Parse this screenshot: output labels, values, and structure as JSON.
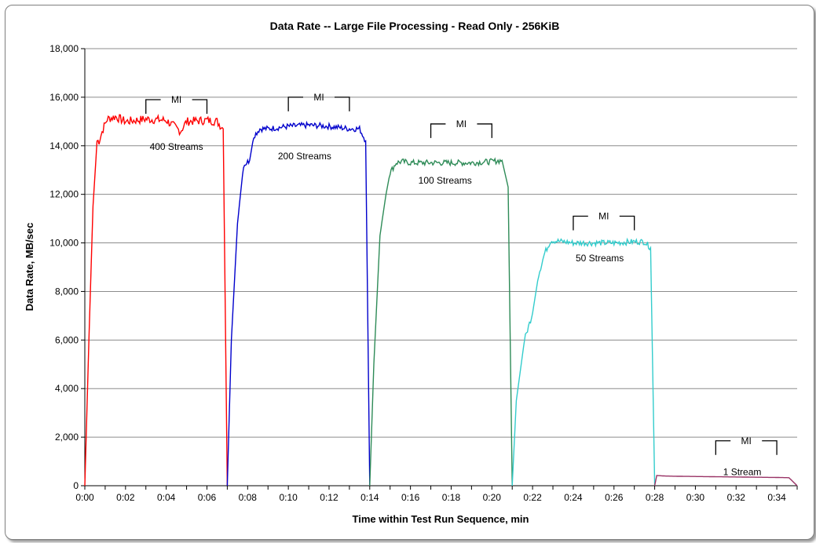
{
  "chart_data": {
    "type": "line",
    "title": "Data Rate -- Large File Processing - Read Only - 256KiB",
    "xlabel": "Time within Test Run Sequence, min",
    "ylabel": "Data Rate, MB/sec",
    "xlim": [
      0,
      35
    ],
    "ylim": [
      0,
      18000
    ],
    "x_ticks": [
      "0:00",
      "0:02",
      "0:04",
      "0:06",
      "0:08",
      "0:10",
      "0:12",
      "0:14",
      "0:16",
      "0:18",
      "0:20",
      "0:22",
      "0:24",
      "0:26",
      "0:28",
      "0:30",
      "0:32",
      "0:34"
    ],
    "x_tick_values": [
      0,
      2,
      4,
      6,
      8,
      10,
      12,
      14,
      16,
      18,
      20,
      22,
      24,
      26,
      28,
      30,
      32,
      34
    ],
    "y_ticks": [
      "0",
      "2,000",
      "4,000",
      "6,000",
      "8,000",
      "10,000",
      "12,000",
      "14,000",
      "16,000",
      "18,000"
    ],
    "y_tick_values": [
      0,
      2000,
      4000,
      6000,
      8000,
      10000,
      12000,
      14000,
      16000,
      18000
    ],
    "grid": "horizontal",
    "legend": "none",
    "series": [
      {
        "label": "400 Streams",
        "color": "#ff0000",
        "x": [
          0.0,
          0.2,
          0.4,
          0.6,
          0.7,
          0.9,
          1.1,
          1.5,
          2.0,
          3.0,
          4.0,
          4.7,
          5.0,
          6.0,
          6.5,
          6.8,
          7.0
        ],
        "y": [
          0,
          6000,
          11500,
          14200,
          14200,
          14700,
          15100,
          15200,
          15000,
          15100,
          15050,
          14600,
          15000,
          15050,
          15000,
          14700,
          0
        ],
        "plateau": [
          6.0,
          6.5
        ],
        "mi": {
          "label": "MI",
          "start": 3.0,
          "end": 6.0,
          "y": 15900
        }
      },
      {
        "label": "200 Streams",
        "color": "#0000cc",
        "x": [
          7.0,
          7.2,
          7.5,
          7.8,
          8.1,
          8.3,
          8.6,
          9.0,
          10.0,
          11.0,
          12.0,
          13.0,
          13.5,
          13.8,
          14.0
        ],
        "y": [
          0,
          6000,
          10800,
          13200,
          13400,
          14400,
          14700,
          14700,
          14800,
          14850,
          14800,
          14700,
          14700,
          14200,
          0
        ],
        "plateau": [
          13.0,
          13.5
        ],
        "mi": {
          "label": "MI",
          "start": 10.0,
          "end": 13.0,
          "y": 16000
        }
      },
      {
        "label": "100 Streams",
        "color": "#2e8b57",
        "x": [
          14.0,
          14.2,
          14.5,
          14.8,
          15.0,
          15.3,
          15.6,
          16.0,
          17.0,
          18.0,
          19.0,
          20.0,
          20.5,
          20.8,
          21.0
        ],
        "y": [
          0,
          5000,
          10300,
          12000,
          12900,
          13300,
          13350,
          13300,
          13300,
          13300,
          13300,
          13350,
          13400,
          12300,
          0
        ],
        "plateau": [
          20.0,
          20.5
        ],
        "mi": {
          "label": "MI",
          "start": 17.0,
          "end": 20.0,
          "y": 14900
        }
      },
      {
        "label": "50 Streams",
        "color": "#33cccc",
        "x": [
          21.0,
          21.2,
          21.6,
          22.0,
          22.3,
          22.6,
          22.9,
          23.5,
          24.0,
          25.0,
          26.0,
          27.0,
          27.5,
          27.8,
          28.0
        ],
        "y": [
          0,
          3500,
          6000,
          7100,
          8700,
          9600,
          10100,
          10050,
          10000,
          10000,
          10000,
          10050,
          10050,
          9800,
          0
        ],
        "plateau": [
          27.0,
          27.5
        ],
        "mi": {
          "label": "MI",
          "start": 24.0,
          "end": 27.0,
          "y": 11100
        }
      },
      {
        "label": "1 Stream",
        "color": "#993366",
        "x": [
          28.0,
          28.1,
          28.5,
          29.0,
          30.0,
          31.0,
          32.0,
          33.0,
          34.0,
          34.6,
          35.0
        ],
        "y": [
          0,
          420,
          400,
          390,
          380,
          370,
          360,
          350,
          340,
          330,
          0
        ],
        "plateau": [
          34.0,
          34.6
        ],
        "mi": {
          "label": "MI",
          "start": 31.0,
          "end": 34.0,
          "y": 1850
        }
      }
    ]
  }
}
